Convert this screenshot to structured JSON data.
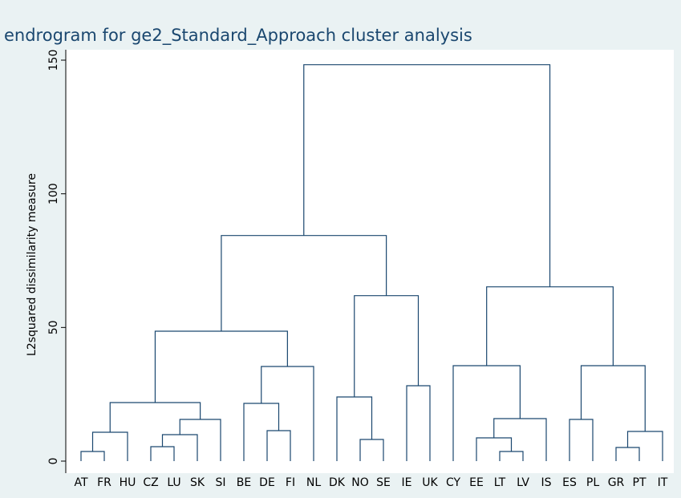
{
  "chart_data": {
    "type": "dendrogram",
    "title": "endrogram for ge2_Standard_Approach cluster analysis",
    "y_label": "L2squared dissimilarity measure",
    "color": "#1a476f",
    "categories": [
      "AT",
      "FR",
      "HU",
      "CZ",
      "LU",
      "SK",
      "SI",
      "BE",
      "DE",
      "FI",
      "NL",
      "DK",
      "NO",
      "SE",
      "IE",
      "UK",
      "CY",
      "EE",
      "LT",
      "LV",
      "IS",
      "ES",
      "PL",
      "GR",
      "PT",
      "IT"
    ],
    "merges": [
      {
        "join": [
          0,
          1
        ],
        "height": 3.6
      },
      {
        "join": [
          18,
          19
        ],
        "height": 3.6
      },
      {
        "join": [
          23,
          24
        ],
        "height": 5.1
      },
      {
        "join": [
          3,
          4
        ],
        "height": 5.4
      },
      {
        "join": [
          12,
          13
        ],
        "height": 8.1
      },
      {
        "join": [
          17,
          27
        ],
        "height": 8.7
      },
      {
        "join": [
          29,
          5
        ],
        "height": 9.9
      },
      {
        "join": [
          26,
          2
        ],
        "height": 10.8
      },
      {
        "join": [
          28,
          25
        ],
        "height": 11.1
      },
      {
        "join": [
          8,
          9
        ],
        "height": 11.4
      },
      {
        "join": [
          32,
          6
        ],
        "height": 15.6
      },
      {
        "join": [
          21,
          22
        ],
        "height": 15.6
      },
      {
        "join": [
          31,
          20
        ],
        "height": 15.9
      },
      {
        "join": [
          7,
          35
        ],
        "height": 21.6
      },
      {
        "join": [
          33,
          36
        ],
        "height": 21.9
      },
      {
        "join": [
          11,
          30
        ],
        "height": 24
      },
      {
        "join": [
          14,
          15
        ],
        "height": 28.2
      },
      {
        "join": [
          39,
          10
        ],
        "height": 35.4
      },
      {
        "join": [
          16,
          38
        ],
        "height": 35.7
      },
      {
        "join": [
          37,
          34
        ],
        "height": 35.7
      },
      {
        "join": [
          40,
          43
        ],
        "height": 48.6
      },
      {
        "join": [
          41,
          42
        ],
        "height": 61.9
      },
      {
        "join": [
          44,
          45
        ],
        "height": 65.2
      },
      {
        "join": [
          46,
          47
        ],
        "height": 84.4
      },
      {
        "join": [
          49,
          48
        ],
        "height": 148.3
      }
    ],
    "ylim": [
      0,
      150
    ],
    "yticks": [
      0,
      50,
      100,
      150
    ]
  }
}
